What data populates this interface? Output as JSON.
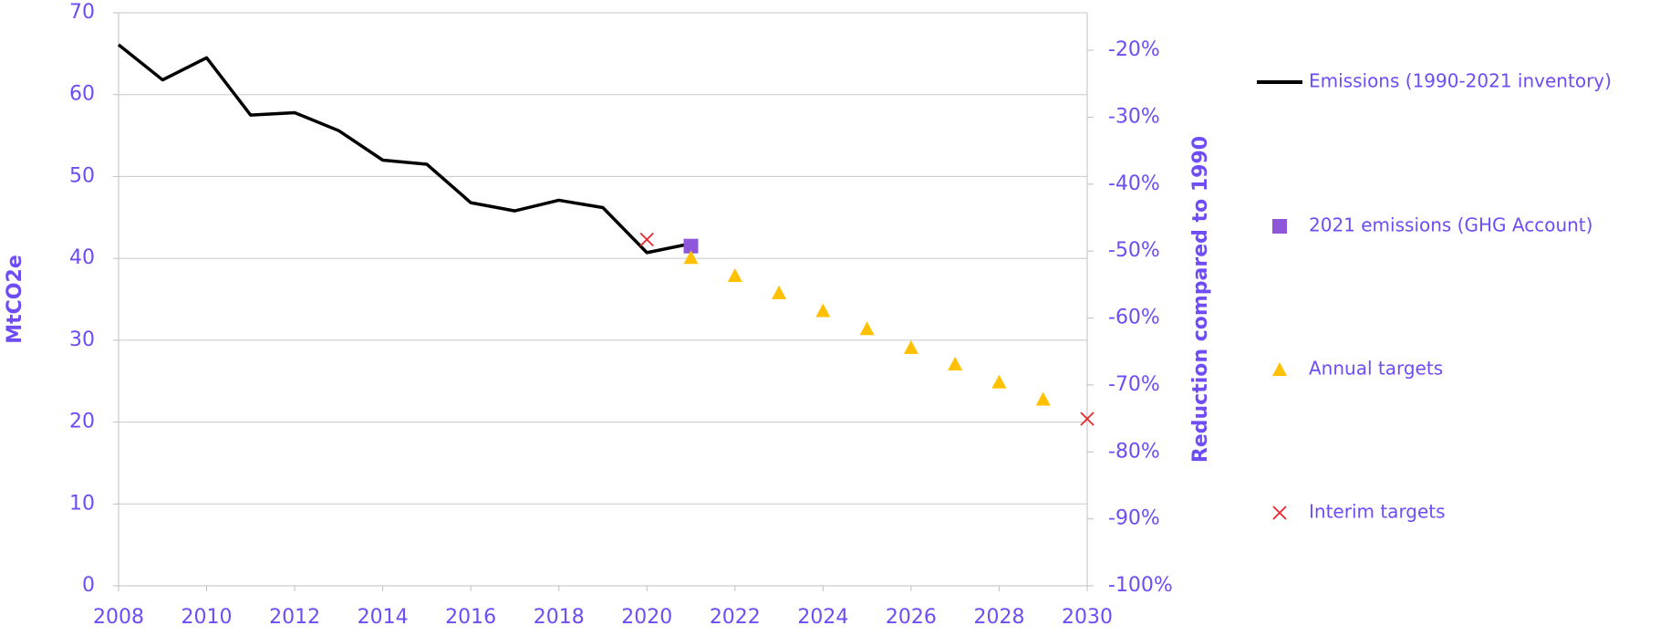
{
  "chart_data": {
    "type": "line",
    "ylabel": "MtCO2e",
    "y2label": "Reduction compared to 1990",
    "xlim": [
      2008,
      2030
    ],
    "xticks": [
      2008,
      2010,
      2012,
      2014,
      2016,
      2018,
      2020,
      2022,
      2024,
      2026,
      2028,
      2030
    ],
    "ylim": [
      0,
      70
    ],
    "yticks": [
      0,
      10,
      20,
      30,
      40,
      50,
      60,
      70
    ],
    "y2lim": [
      -100,
      -14.4
    ],
    "y2ticks": [
      {
        "value": -100,
        "label": "-100%"
      },
      {
        "value": -90,
        "label": "-90%"
      },
      {
        "value": -80,
        "label": "-80%"
      },
      {
        "value": -70,
        "label": "-70%"
      },
      {
        "value": -60,
        "label": "-60%"
      },
      {
        "value": -50,
        "label": "-50%"
      },
      {
        "value": -40,
        "label": "-40%"
      },
      {
        "value": -30,
        "label": "-30%"
      },
      {
        "value": -20,
        "label": "-20%"
      }
    ],
    "grid": true,
    "legend": "right",
    "series": [
      {
        "name": "Emissions (1990-2021 inventory)",
        "type": "line",
        "color": "#000000",
        "x": [
          2008,
          2009,
          2010,
          2011,
          2012,
          2013,
          2014,
          2015,
          2016,
          2017,
          2018,
          2019,
          2020,
          2021
        ],
        "values": [
          66.1,
          61.8,
          64.5,
          57.5,
          57.8,
          55.6,
          52.0,
          51.5,
          46.8,
          45.8,
          47.1,
          46.2,
          40.7,
          41.8
        ]
      },
      {
        "name": "2021 emissions (GHG Account)",
        "type": "scatter",
        "marker": "square",
        "color": "#8e56d8",
        "x": [
          2021
        ],
        "values": [
          41.5
        ]
      },
      {
        "name": "Annual targets",
        "type": "scatter",
        "marker": "triangle",
        "color": "#ffc000",
        "x": [
          2021,
          2022,
          2023,
          2024,
          2025,
          2026,
          2027,
          2028,
          2029
        ],
        "values": [
          40.1,
          37.9,
          35.8,
          33.6,
          31.4,
          29.1,
          27.1,
          24.9,
          22.8
        ]
      },
      {
        "name": "Interim targets",
        "type": "scatter",
        "marker": "x",
        "color": "#e8262b",
        "x": [
          2020,
          2030
        ],
        "values": [
          42.3,
          20.4
        ]
      }
    ]
  }
}
